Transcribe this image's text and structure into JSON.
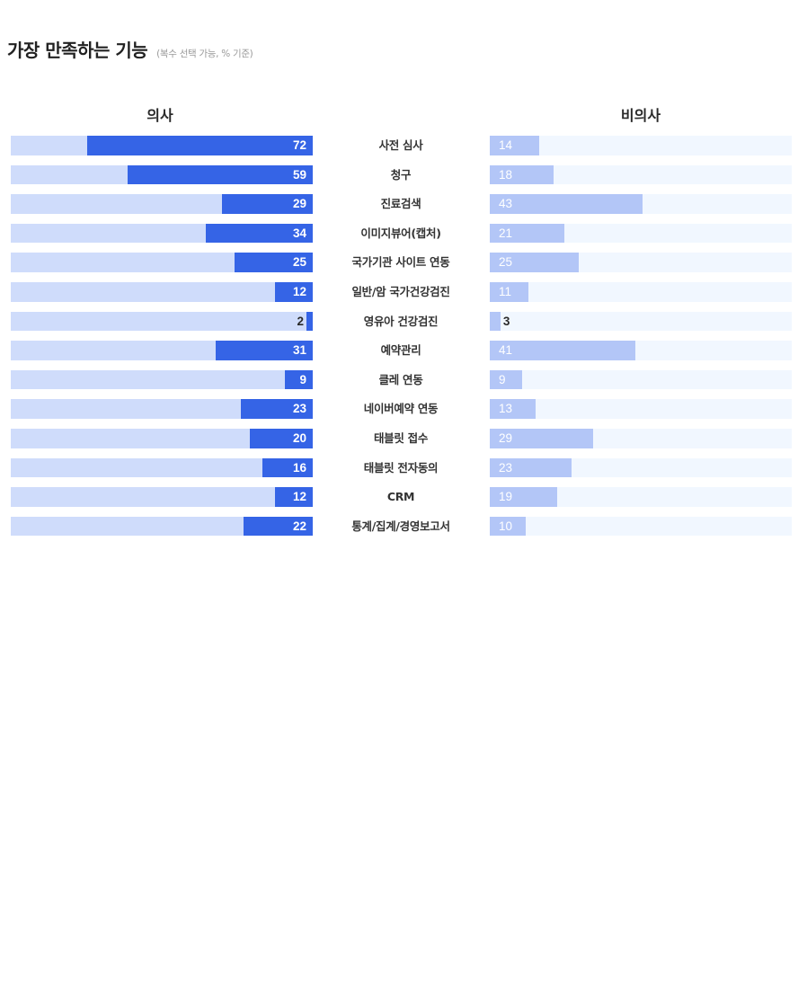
{
  "header": {
    "title": "가장 만족하는 기능",
    "subtitle": "(복수 선택 가능, % 기준)"
  },
  "columns": {
    "left": "의사",
    "right": "비의사"
  },
  "colors": {
    "left_bar": "#3564e6",
    "left_track": "#cfdcfb",
    "right_bar": "#b3c6f7",
    "right_track": "#f1f7ff"
  },
  "chart_data": {
    "type": "bar",
    "title": "가장 만족하는 기능",
    "subtitle": "(복수 선택 가능, % 기준)",
    "orientation": "horizontal-butterfly",
    "unit": "%",
    "categories": [
      "사전 심사",
      "청구",
      "진료검색",
      "이미지뷰어(캡처)",
      "국가기관 사이트 연동",
      "일반/암 국가건강검진",
      "영유아 건강검진",
      "예약관리",
      "클레 연동",
      "네이버예약 연동",
      "태블릿 접수",
      "태블릿 전자동의",
      "CRM",
      "통계/집계/경영보고서"
    ],
    "series": [
      {
        "name": "의사",
        "values": [
          72,
          59,
          29,
          34,
          25,
          12,
          2,
          31,
          9,
          23,
          20,
          16,
          12,
          22
        ]
      },
      {
        "name": "비의사",
        "values": [
          14,
          18,
          43,
          21,
          25,
          11,
          3,
          41,
          9,
          13,
          29,
          23,
          19,
          10
        ]
      }
    ],
    "xlabel": "",
    "ylabel": "",
    "grid": false,
    "legend": "column headers (의사 left, 비의사 right)"
  }
}
